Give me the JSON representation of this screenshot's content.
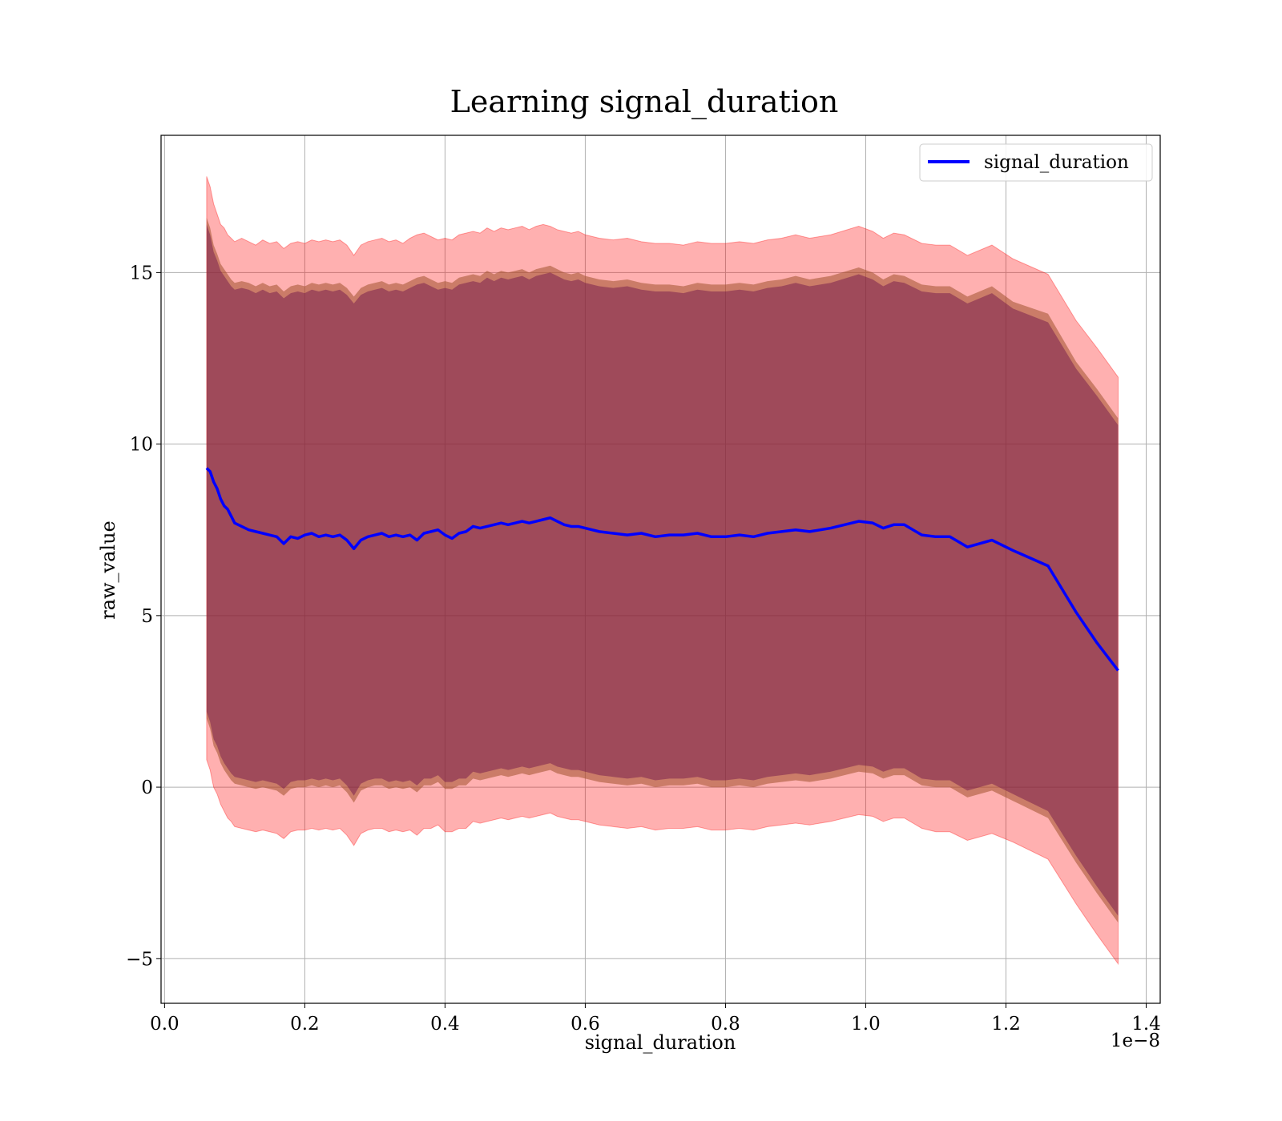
{
  "chart_data": {
    "type": "area",
    "title": "Learning signal_duration",
    "xlabel": "signal_duration",
    "ylabel": "raw_value",
    "x_offset_label": "1e−8",
    "xlim": [
      -0.005,
      1.42
    ],
    "ylim": [
      -6.3,
      19.0
    ],
    "x_ticks": [
      0.0,
      0.2,
      0.4,
      0.6,
      0.8,
      1.0,
      1.2,
      1.4
    ],
    "x_tick_labels": [
      "0.0",
      "0.2",
      "0.4",
      "0.6",
      "0.8",
      "1.0",
      "1.2",
      "1.4"
    ],
    "y_ticks": [
      -5,
      0,
      5,
      10,
      15
    ],
    "y_tick_labels": [
      "−5",
      "0",
      "5",
      "10",
      "15"
    ],
    "grid": true,
    "legend_position": "top-right",
    "colors": {
      "line": "#0000ff",
      "outer_band": "#ff0000",
      "middle_band": "#a0522d",
      "inner_band": "#6a0d4a"
    },
    "series": [
      {
        "name": "signal_duration",
        "x": [
          0.06,
          0.065,
          0.07,
          0.075,
          0.08,
          0.085,
          0.09,
          0.095,
          0.1,
          0.11,
          0.12,
          0.13,
          0.14,
          0.15,
          0.16,
          0.17,
          0.18,
          0.19,
          0.2,
          0.21,
          0.22,
          0.23,
          0.24,
          0.25,
          0.26,
          0.27,
          0.28,
          0.29,
          0.3,
          0.31,
          0.32,
          0.33,
          0.34,
          0.35,
          0.36,
          0.37,
          0.38,
          0.39,
          0.4,
          0.41,
          0.42,
          0.43,
          0.44,
          0.45,
          0.46,
          0.47,
          0.48,
          0.49,
          0.5,
          0.51,
          0.52,
          0.53,
          0.54,
          0.55,
          0.56,
          0.57,
          0.58,
          0.59,
          0.6,
          0.62,
          0.64,
          0.66,
          0.68,
          0.7,
          0.72,
          0.74,
          0.76,
          0.78,
          0.8,
          0.82,
          0.84,
          0.86,
          0.88,
          0.9,
          0.92,
          0.95,
          0.99,
          1.01,
          1.025,
          1.04,
          1.055,
          1.08,
          1.1,
          1.12,
          1.145,
          1.18,
          1.21,
          1.26,
          1.3,
          1.33,
          1.36
        ],
        "values": [
          9.3,
          9.2,
          8.9,
          8.7,
          8.4,
          8.2,
          8.1,
          7.9,
          7.7,
          7.6,
          7.5,
          7.45,
          7.4,
          7.35,
          7.3,
          7.1,
          7.3,
          7.25,
          7.35,
          7.4,
          7.3,
          7.35,
          7.3,
          7.35,
          7.2,
          6.95,
          7.2,
          7.3,
          7.35,
          7.4,
          7.3,
          7.35,
          7.3,
          7.35,
          7.2,
          7.4,
          7.45,
          7.5,
          7.35,
          7.25,
          7.4,
          7.45,
          7.6,
          7.55,
          7.6,
          7.65,
          7.7,
          7.65,
          7.7,
          7.75,
          7.7,
          7.75,
          7.8,
          7.85,
          7.75,
          7.65,
          7.6,
          7.6,
          7.55,
          7.45,
          7.4,
          7.35,
          7.4,
          7.3,
          7.35,
          7.35,
          7.4,
          7.3,
          7.3,
          7.35,
          7.3,
          7.4,
          7.45,
          7.5,
          7.45,
          7.55,
          7.75,
          7.7,
          7.55,
          7.65,
          7.65,
          7.35,
          7.3,
          7.3,
          7.0,
          7.2,
          6.9,
          6.45,
          5.1,
          4.2,
          3.4
        ]
      }
    ],
    "bands": {
      "outer": {
        "upper": [
          17.8,
          17.5,
          17.0,
          16.7,
          16.4,
          16.3,
          16.1,
          16.0,
          15.9,
          16.0,
          15.9,
          15.8,
          15.95,
          15.85,
          15.9,
          15.7,
          15.85,
          15.9,
          15.85,
          15.95,
          15.9,
          15.95,
          15.9,
          15.95,
          15.8,
          15.5,
          15.8,
          15.9,
          15.95,
          16.0,
          15.9,
          15.95,
          15.85,
          16.0,
          16.1,
          16.15,
          16.05,
          15.95,
          16.0,
          15.95,
          16.1,
          16.15,
          16.2,
          16.15,
          16.3,
          16.2,
          16.3,
          16.25,
          16.3,
          16.35,
          16.25,
          16.35,
          16.4,
          16.35,
          16.25,
          16.2,
          16.15,
          16.2,
          16.1,
          16.0,
          15.95,
          16.0,
          15.9,
          15.85,
          15.85,
          15.8,
          15.9,
          15.85,
          15.85,
          15.9,
          15.85,
          15.95,
          16.0,
          16.1,
          16.0,
          16.1,
          16.35,
          16.2,
          16.0,
          16.15,
          16.1,
          15.85,
          15.8,
          15.8,
          15.5,
          15.8,
          15.4,
          14.95,
          13.6,
          12.8,
          11.95
        ],
        "lower": [
          0.8,
          0.5,
          0.0,
          -0.2,
          -0.5,
          -0.7,
          -0.9,
          -1.0,
          -1.15,
          -1.2,
          -1.25,
          -1.3,
          -1.25,
          -1.3,
          -1.35,
          -1.5,
          -1.3,
          -1.25,
          -1.25,
          -1.2,
          -1.25,
          -1.2,
          -1.25,
          -1.2,
          -1.4,
          -1.7,
          -1.35,
          -1.25,
          -1.2,
          -1.2,
          -1.3,
          -1.25,
          -1.3,
          -1.25,
          -1.4,
          -1.2,
          -1.2,
          -1.1,
          -1.3,
          -1.3,
          -1.2,
          -1.2,
          -1.0,
          -1.05,
          -1.0,
          -0.95,
          -0.9,
          -0.95,
          -0.9,
          -0.85,
          -0.9,
          -0.85,
          -0.8,
          -0.75,
          -0.85,
          -0.9,
          -0.95,
          -0.95,
          -1.0,
          -1.1,
          -1.15,
          -1.2,
          -1.15,
          -1.25,
          -1.2,
          -1.2,
          -1.15,
          -1.25,
          -1.25,
          -1.2,
          -1.25,
          -1.15,
          -1.1,
          -1.05,
          -1.1,
          -1.0,
          -0.8,
          -0.85,
          -1.0,
          -0.9,
          -0.9,
          -1.2,
          -1.3,
          -1.3,
          -1.55,
          -1.35,
          -1.6,
          -2.1,
          -3.4,
          -4.3,
          -5.15
        ]
      },
      "middle": {
        "upper": [
          16.6,
          16.3,
          15.8,
          15.55,
          15.25,
          15.1,
          14.95,
          14.8,
          14.7,
          14.75,
          14.7,
          14.6,
          14.7,
          14.6,
          14.65,
          14.45,
          14.6,
          14.65,
          14.6,
          14.7,
          14.65,
          14.7,
          14.65,
          14.7,
          14.55,
          14.3,
          14.55,
          14.65,
          14.7,
          14.75,
          14.65,
          14.7,
          14.65,
          14.75,
          14.85,
          14.9,
          14.8,
          14.7,
          14.75,
          14.7,
          14.85,
          14.9,
          14.95,
          14.9,
          15.05,
          14.95,
          15.05,
          15.0,
          15.05,
          15.1,
          15.0,
          15.1,
          15.15,
          15.2,
          15.1,
          15.0,
          14.95,
          15.0,
          14.9,
          14.8,
          14.75,
          14.8,
          14.7,
          14.65,
          14.65,
          14.6,
          14.7,
          14.65,
          14.65,
          14.7,
          14.65,
          14.75,
          14.8,
          14.9,
          14.8,
          14.9,
          15.15,
          15.0,
          14.8,
          14.95,
          14.9,
          14.65,
          14.6,
          14.6,
          14.3,
          14.6,
          14.15,
          13.8,
          12.4,
          11.6,
          10.75
        ],
        "lower": [
          2.0,
          1.7,
          1.2,
          1.0,
          0.7,
          0.5,
          0.35,
          0.2,
          0.1,
          0.05,
          0.0,
          -0.05,
          0.0,
          -0.05,
          -0.1,
          -0.25,
          -0.05,
          0.0,
          0.0,
          0.05,
          0.0,
          0.05,
          0.0,
          0.05,
          -0.15,
          -0.45,
          -0.1,
          0.0,
          0.05,
          0.05,
          -0.05,
          0.0,
          -0.05,
          0.0,
          -0.15,
          0.05,
          0.05,
          0.15,
          -0.05,
          -0.05,
          0.05,
          0.05,
          0.25,
          0.2,
          0.25,
          0.3,
          0.35,
          0.3,
          0.35,
          0.4,
          0.35,
          0.4,
          0.45,
          0.5,
          0.4,
          0.35,
          0.3,
          0.3,
          0.25,
          0.15,
          0.1,
          0.05,
          0.1,
          0.0,
          0.05,
          0.05,
          0.1,
          0.0,
          0.0,
          0.05,
          0.0,
          0.1,
          0.15,
          0.2,
          0.15,
          0.25,
          0.45,
          0.4,
          0.25,
          0.35,
          0.35,
          0.05,
          0.0,
          0.0,
          -0.3,
          -0.1,
          -0.4,
          -0.9,
          -2.2,
          -3.1,
          -3.95
        ]
      },
      "inner": {
        "upper": [
          16.4,
          16.1,
          15.6,
          15.35,
          15.05,
          14.9,
          14.75,
          14.6,
          14.5,
          14.55,
          14.5,
          14.4,
          14.5,
          14.4,
          14.45,
          14.25,
          14.4,
          14.45,
          14.4,
          14.5,
          14.45,
          14.5,
          14.45,
          14.5,
          14.35,
          14.1,
          14.35,
          14.45,
          14.5,
          14.55,
          14.45,
          14.5,
          14.45,
          14.55,
          14.65,
          14.7,
          14.6,
          14.5,
          14.55,
          14.5,
          14.65,
          14.7,
          14.75,
          14.7,
          14.85,
          14.75,
          14.85,
          14.8,
          14.85,
          14.9,
          14.8,
          14.9,
          14.95,
          15.0,
          14.9,
          14.8,
          14.75,
          14.8,
          14.7,
          14.6,
          14.55,
          14.6,
          14.5,
          14.45,
          14.45,
          14.4,
          14.5,
          14.45,
          14.45,
          14.5,
          14.45,
          14.55,
          14.6,
          14.7,
          14.6,
          14.7,
          14.95,
          14.8,
          14.6,
          14.75,
          14.7,
          14.45,
          14.4,
          14.4,
          14.1,
          14.4,
          13.95,
          13.55,
          12.2,
          11.4,
          10.55
        ],
        "lower": [
          2.2,
          1.9,
          1.4,
          1.2,
          0.9,
          0.7,
          0.55,
          0.4,
          0.3,
          0.25,
          0.2,
          0.15,
          0.2,
          0.15,
          0.1,
          -0.05,
          0.15,
          0.2,
          0.2,
          0.25,
          0.2,
          0.25,
          0.2,
          0.25,
          0.05,
          -0.25,
          0.1,
          0.2,
          0.25,
          0.25,
          0.15,
          0.2,
          0.15,
          0.2,
          0.05,
          0.25,
          0.25,
          0.35,
          0.15,
          0.15,
          0.25,
          0.25,
          0.45,
          0.4,
          0.45,
          0.5,
          0.55,
          0.5,
          0.55,
          0.6,
          0.55,
          0.6,
          0.65,
          0.7,
          0.6,
          0.55,
          0.5,
          0.5,
          0.45,
          0.35,
          0.3,
          0.25,
          0.3,
          0.2,
          0.25,
          0.25,
          0.3,
          0.2,
          0.2,
          0.25,
          0.2,
          0.3,
          0.35,
          0.4,
          0.35,
          0.45,
          0.65,
          0.6,
          0.45,
          0.55,
          0.55,
          0.25,
          0.2,
          0.2,
          -0.1,
          0.1,
          -0.2,
          -0.7,
          -2.0,
          -2.9,
          -3.75
        ]
      }
    }
  }
}
